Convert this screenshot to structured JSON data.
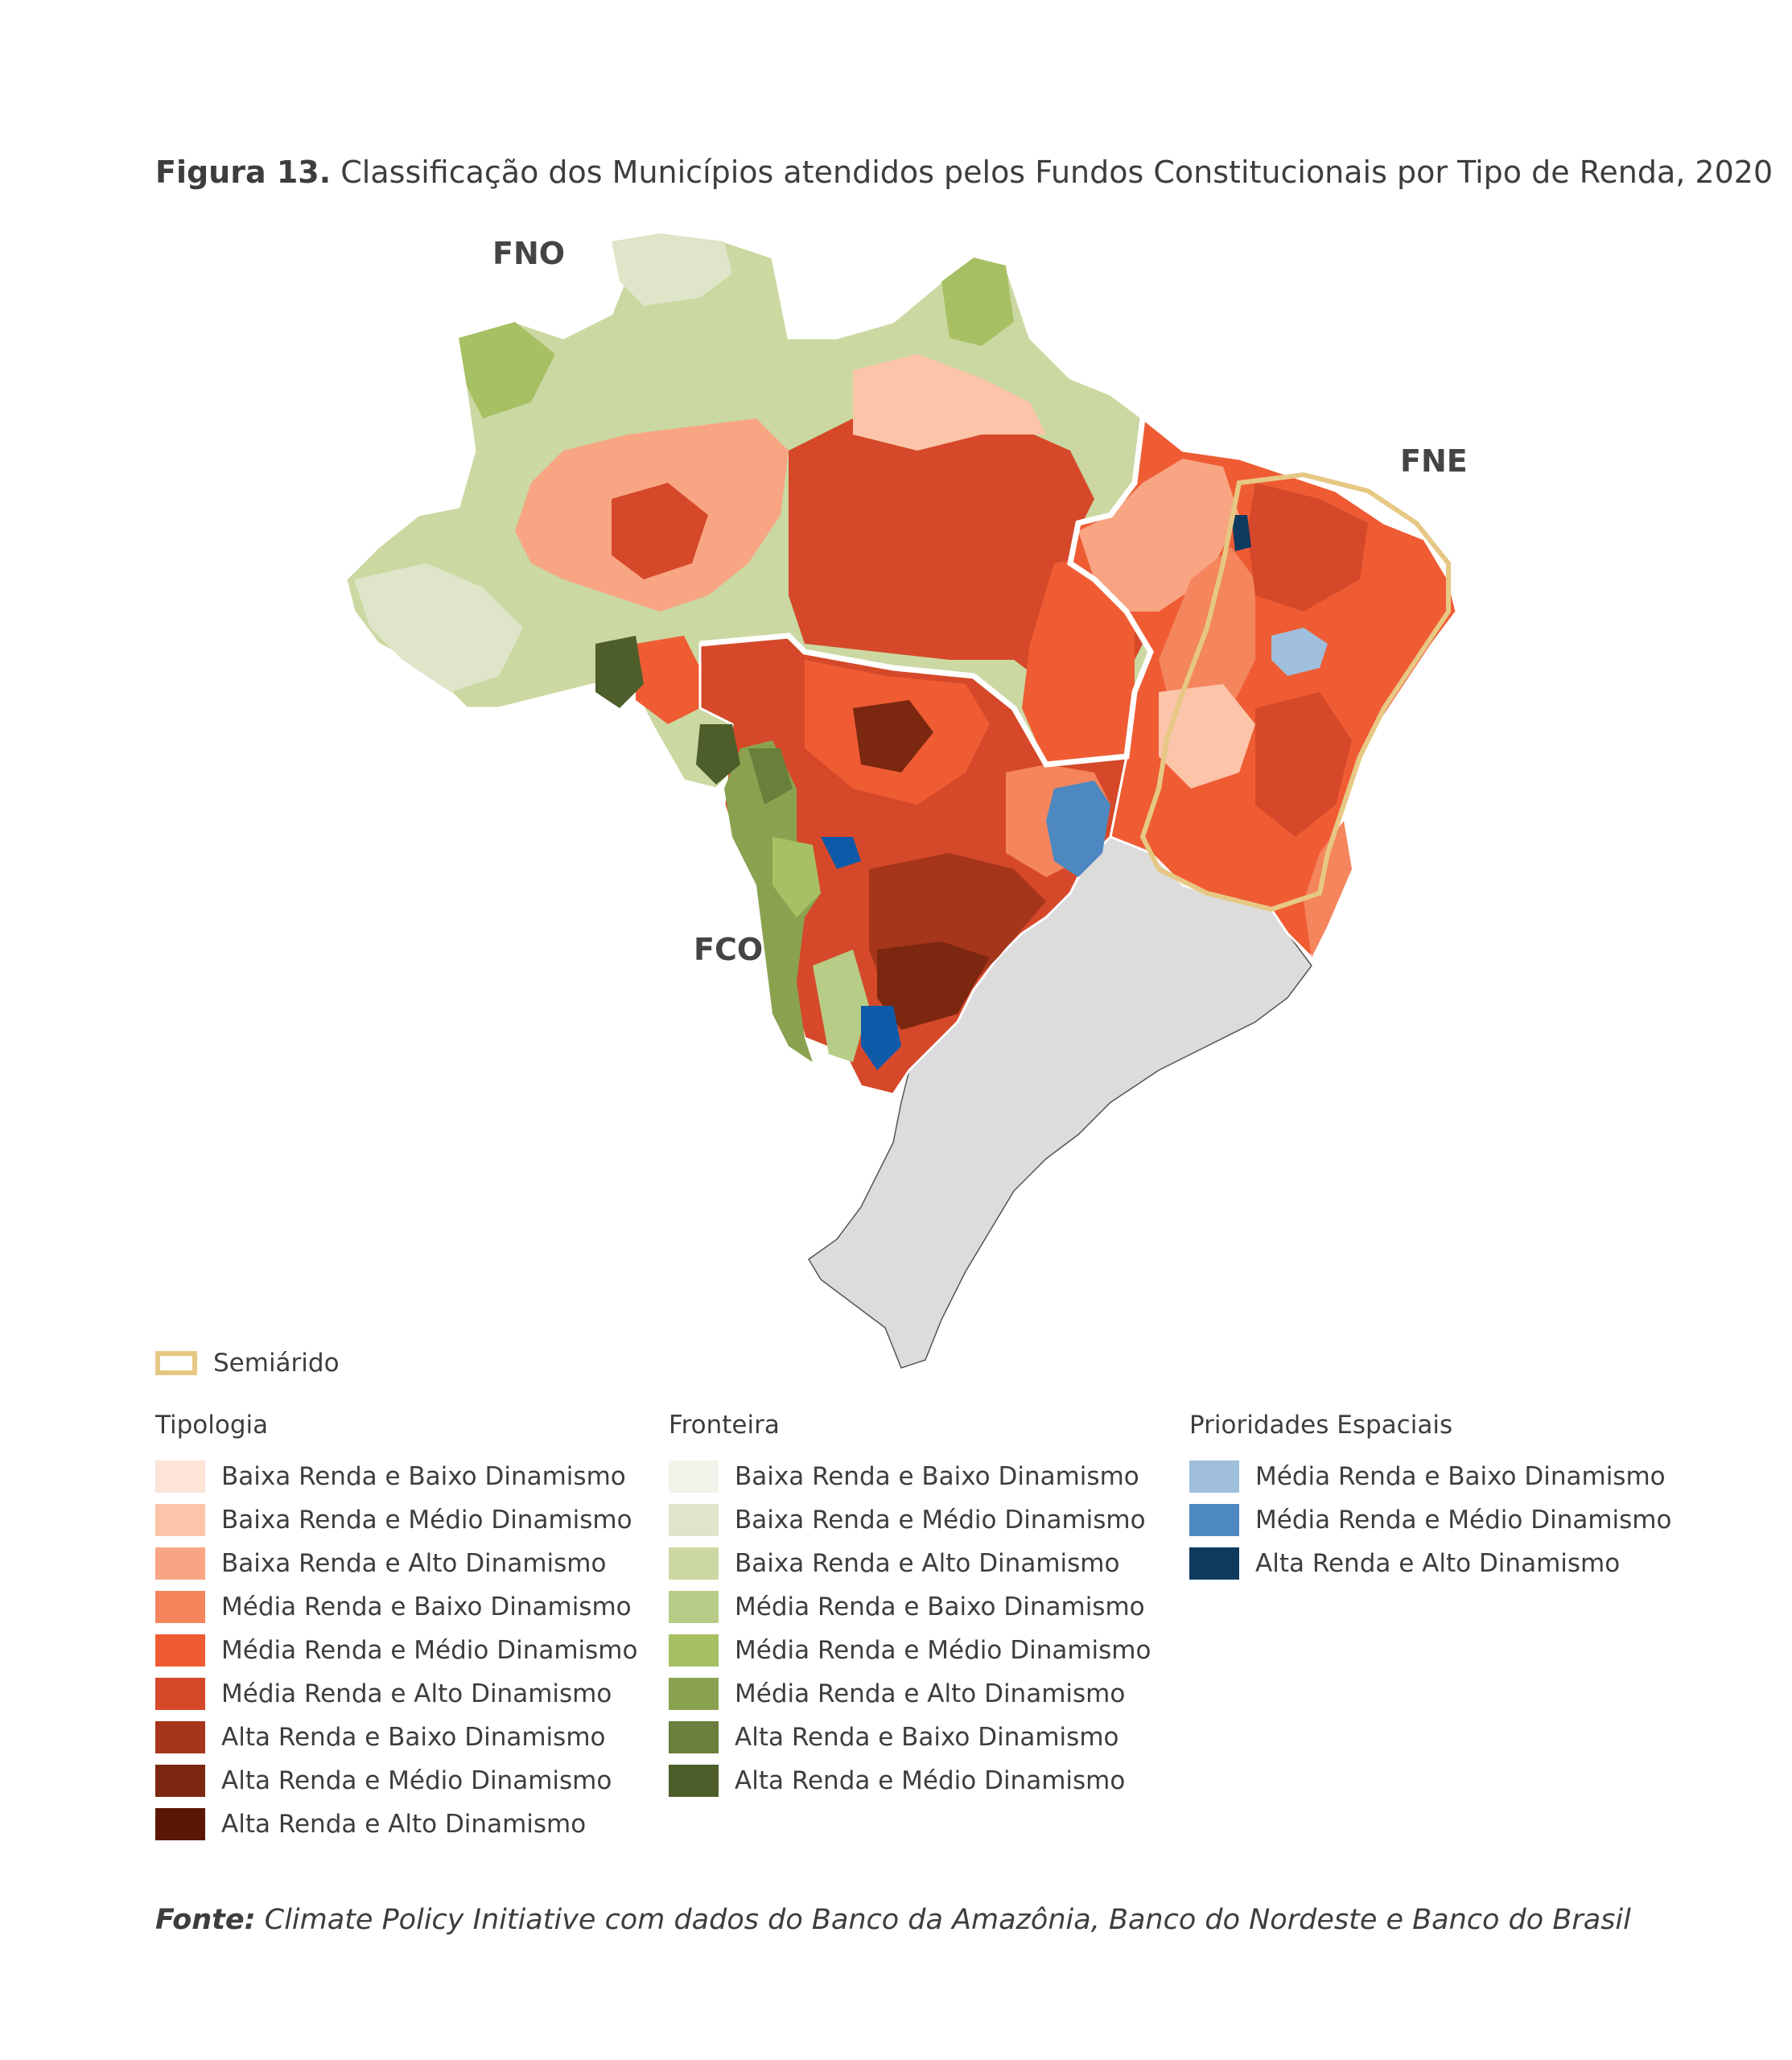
{
  "caption": {
    "label": "Figura 13.",
    "text": "Classificação dos Municípios atendidos pelos Fundos Constitucionais por Tipo de Renda, 2020"
  },
  "map": {
    "regions": {
      "fno": "FNO",
      "fne": "FNE",
      "fco": "FCO"
    },
    "semiarido_label": "Semiárido",
    "semiarido_color": "#e6c884",
    "other_region_color": "#dcdcdc"
  },
  "legend": {
    "tipologia": {
      "title": "Tipologia",
      "items": [
        {
          "label": "Baixa Renda e Baixo Dinamismo",
          "color": "#fde3d8"
        },
        {
          "label": "Baixa Renda e Médio Dinamismo",
          "color": "#fcc4a9"
        },
        {
          "label": "Baixa Renda e Alto Dinamismo",
          "color": "#f8a584"
        },
        {
          "label": "Média Renda e Baixo Dinamismo",
          "color": "#f4855d"
        },
        {
          "label": "Média Renda e Médio Dinamismo",
          "color": "#ef5c33"
        },
        {
          "label": "Média Renda e Alto Dinamismo",
          "color": "#d5492a"
        },
        {
          "label": "Alta Renda e Baixo Dinamismo",
          "color": "#a5361b"
        },
        {
          "label": "Alta Renda e Médio Dinamismo",
          "color": "#7c2710"
        },
        {
          "label": "Alta Renda e Alto Dinamismo",
          "color": "#5b1605"
        }
      ]
    },
    "fronteira": {
      "title": "Fronteira",
      "items": [
        {
          "label": "Baixa Renda e Baixo Dinamismo",
          "color": "#f2f3ea"
        },
        {
          "label": "Baixa Renda e Médio Dinamismo",
          "color": "#dfe5c8"
        },
        {
          "label": "Baixa Renda e Alto Dinamismo",
          "color": "#cbd8a2"
        },
        {
          "label": "Média Renda e Baixo Dinamismo",
          "color": "#b7cc86"
        },
        {
          "label": "Média Renda e Médio Dinamismo",
          "color": "#a7c063"
        },
        {
          "label": "Média Renda e Alto Dinamismo",
          "color": "#8aa24f"
        },
        {
          "label": "Alta Renda e Baixo Dinamismo",
          "color": "#6a7f3c"
        },
        {
          "label": "Alta Renda e Médio Dinamismo",
          "color": "#4d5e2b"
        }
      ]
    },
    "prioridades": {
      "title": "Prioridades Espaciais",
      "items": [
        {
          "label": "Média Renda e Baixo Dinamismo",
          "color": "#9fbfdc"
        },
        {
          "label": "Média Renda e Médio Dinamismo",
          "color": "#4d89c0"
        },
        {
          "label": "Alta Renda e Alto Dinamismo",
          "color": "#0f3a5f"
        }
      ]
    }
  },
  "source": {
    "label": "Fonte:",
    "text": "Climate Policy Initiative com dados do Banco da Amazônia, Banco do Nordeste e Banco do Brasil"
  }
}
